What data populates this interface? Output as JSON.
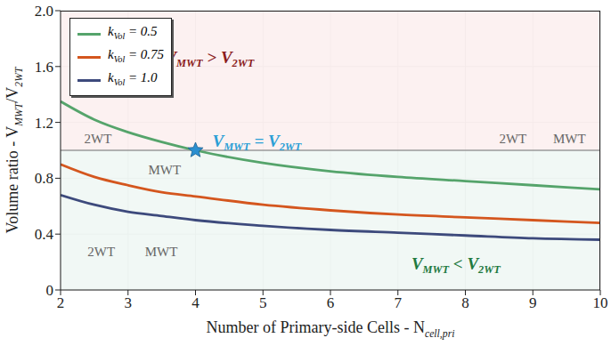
{
  "chart_data": {
    "type": "line",
    "x_label": "Number of Primary-side Cells - Ncell,pri",
    "y_label": "Volume ratio - VMWT/V2WT",
    "x": [
      2,
      2.5,
      3,
      3.5,
      4,
      5,
      6,
      7,
      8,
      9,
      10
    ],
    "xlim": [
      2,
      10
    ],
    "xticks": [
      2,
      3,
      4,
      5,
      6,
      7,
      8,
      9,
      10
    ],
    "ylim": [
      0,
      2
    ],
    "yticks": [
      0,
      0.4,
      0.8,
      1.2,
      1.6,
      {
        "value": 2,
        "label": "2.0"
      }
    ],
    "grid": true,
    "legend": "upper left",
    "reference_line": 1,
    "series": [
      {
        "name": "kVol = 0.5",
        "color": "#55a46b",
        "values": [
          1.35,
          1.22,
          1.13,
          1.06,
          1.0,
          0.91,
          0.85,
          0.81,
          0.78,
          0.75,
          0.72
        ]
      },
      {
        "name": "kVol = 0.75",
        "color": "#d4561e",
        "values": [
          0.9,
          0.81,
          0.75,
          0.7,
          0.67,
          0.61,
          0.57,
          0.54,
          0.52,
          0.5,
          0.48
        ]
      },
      {
        "name": "kVol = 1.0",
        "color": "#3d4a7c",
        "values": [
          0.68,
          0.61,
          0.56,
          0.53,
          0.5,
          0.46,
          0.43,
          0.41,
          0.39,
          0.37,
          0.36
        ]
      }
    ],
    "highlight": {
      "x": 4,
      "y": 1,
      "marker": "star",
      "color": "#2b8fd0"
    },
    "annotations": [
      {
        "text": "VMWT > V2WT",
        "x": 3.55,
        "y": 1.65,
        "color": "#8b1c1c",
        "bold": true
      },
      {
        "text": "VMWT = V2WT",
        "x": 4.25,
        "y": 1.05,
        "color": "#2b9fd6",
        "bold": true
      },
      {
        "text": "VMWT < V2WT",
        "x": 7.2,
        "y": 0.17,
        "color": "#1f7a3f",
        "bold": true
      },
      {
        "text": "2WT",
        "x": 2.35,
        "y": 1.07,
        "color": "#666666",
        "bold": false
      },
      {
        "text": "MWT",
        "x": 3.3,
        "y": 0.85,
        "color": "#666666",
        "bold": false
      },
      {
        "text": "2WT",
        "x": 2.4,
        "y": 0.26,
        "color": "#666666",
        "bold": false
      },
      {
        "text": "MWT",
        "x": 3.25,
        "y": 0.26,
        "color": "#666666",
        "bold": false
      },
      {
        "text": "2WT",
        "x": 8.5,
        "y": 1.07,
        "color": "#666666",
        "bold": false
      },
      {
        "text": "MWT",
        "x": 9.3,
        "y": 1.07,
        "color": "#666666",
        "bold": false
      }
    ]
  }
}
